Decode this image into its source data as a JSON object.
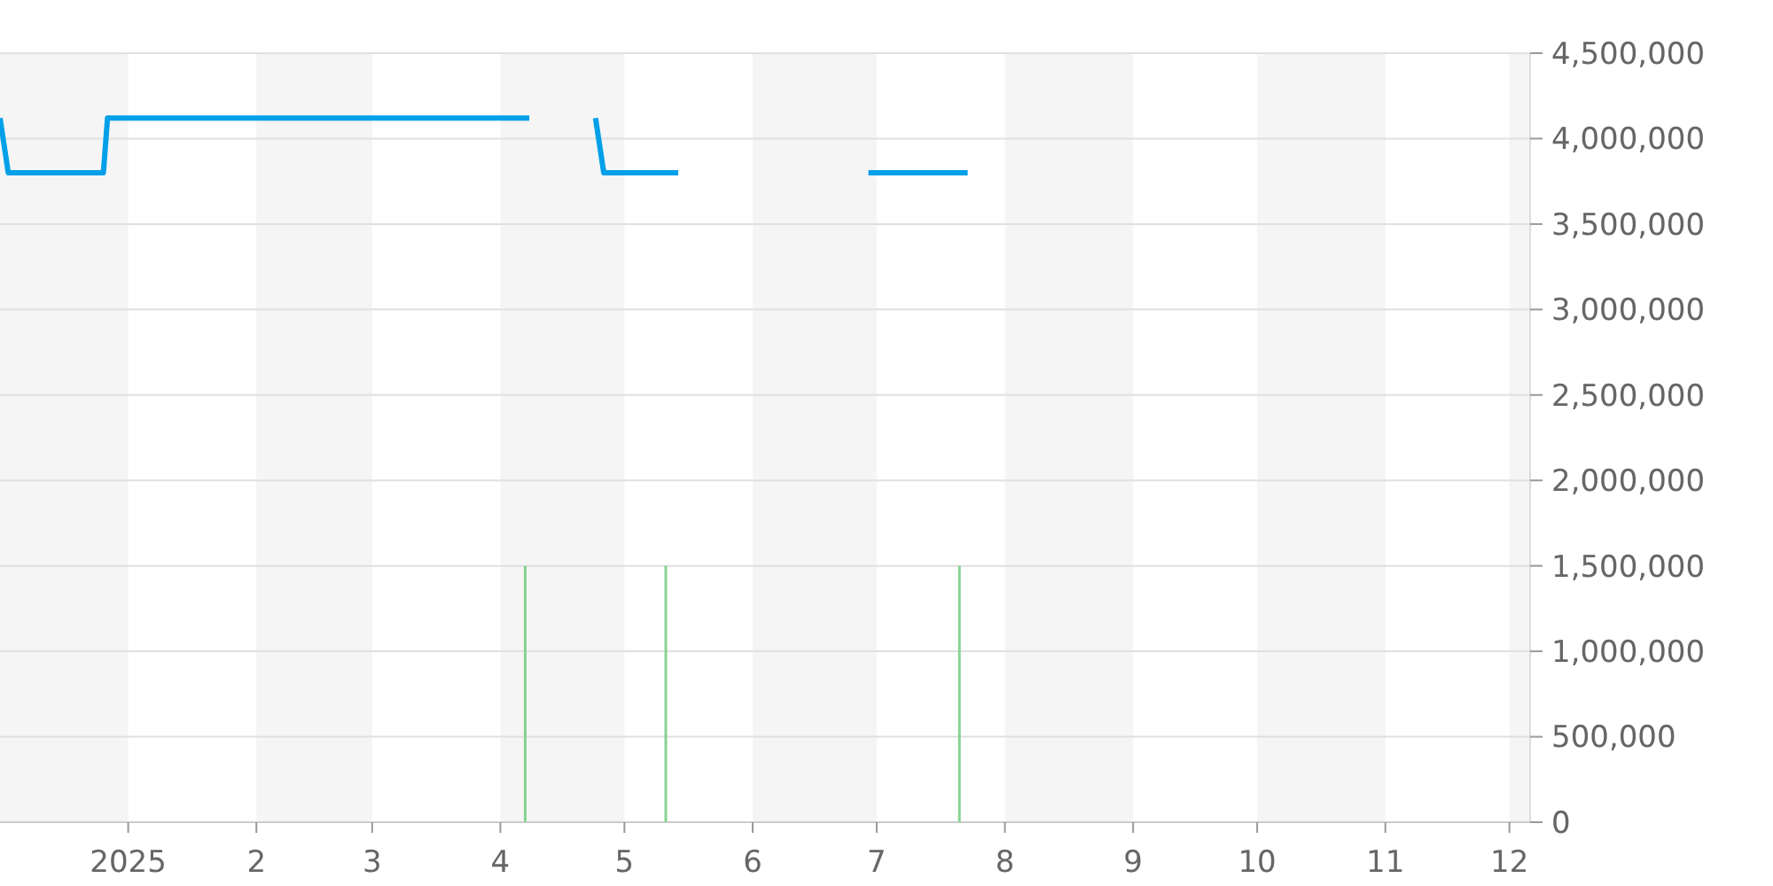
{
  "chart_data": {
    "type": "line",
    "xlim": [
      "2024-12-01",
      "2025-12-06"
    ],
    "xticks": [
      {
        "value": "2025-01-01",
        "label": "2025"
      },
      {
        "value": "2025-02-01",
        "label": "2"
      },
      {
        "value": "2025-03-01",
        "label": "3"
      },
      {
        "value": "2025-04-01",
        "label": "4"
      },
      {
        "value": "2025-05-01",
        "label": "5"
      },
      {
        "value": "2025-06-01",
        "label": "6"
      },
      {
        "value": "2025-07-01",
        "label": "7"
      },
      {
        "value": "2025-08-01",
        "label": "8"
      },
      {
        "value": "2025-09-01",
        "label": "9"
      },
      {
        "value": "2025-10-01",
        "label": "10"
      },
      {
        "value": "2025-11-01",
        "label": "11"
      },
      {
        "value": "2025-12-01",
        "label": "12"
      }
    ],
    "ylim": [
      0,
      4500000
    ],
    "yticks": [
      {
        "value": 0,
        "label": "0"
      },
      {
        "value": 500000,
        "label": "500,000"
      },
      {
        "value": 1000000,
        "label": "1,000,000"
      },
      {
        "value": 1500000,
        "label": "1,500,000"
      },
      {
        "value": 2000000,
        "label": "2,000,000"
      },
      {
        "value": 2500000,
        "label": "2,500,000"
      },
      {
        "value": 3000000,
        "label": "3,000,000"
      },
      {
        "value": 3500000,
        "label": "3,500,000"
      },
      {
        "value": 4000000,
        "label": "4,000,000"
      },
      {
        "value": 4500000,
        "label": "4,500,000"
      }
    ],
    "grid": "y",
    "marker": "none",
    "line_style": "solid",
    "bands": [
      {
        "axis": "x",
        "from": "2024-12-01",
        "to": "2025-01-01",
        "color": "#f5f5f5"
      },
      {
        "axis": "x",
        "from": "2025-02-01",
        "to": "2025-03-01",
        "color": "#f5f5f5"
      },
      {
        "axis": "x",
        "from": "2025-04-01",
        "to": "2025-05-01",
        "color": "#f5f5f5"
      },
      {
        "axis": "x",
        "from": "2025-06-01",
        "to": "2025-07-01",
        "color": "#f5f5f5"
      },
      {
        "axis": "x",
        "from": "2025-08-01",
        "to": "2025-09-01",
        "color": "#f5f5f5"
      },
      {
        "axis": "x",
        "from": "2025-10-01",
        "to": "2025-11-01",
        "color": "#f5f5f5"
      },
      {
        "axis": "x",
        "from": "2025-12-01",
        "to": "2025-12-06",
        "color": "#f5f5f5"
      }
    ],
    "series": [
      {
        "color": "#00a0e9",
        "x": [
          "2024-12-01",
          "2024-12-03",
          "2024-12-26",
          "2024-12-27",
          "2025-04-08",
          "2025-04-16",
          "2025-04-24",
          "2025-04-26",
          "2025-05-14",
          "2025-06-05",
          "2025-06-29",
          "2025-07-23"
        ],
        "values": [
          4120000,
          3800000,
          3800000,
          4120000,
          4120000,
          null,
          4120000,
          3800000,
          3800000,
          null,
          3800000,
          3800000
        ]
      },
      {
        "type": "bar",
        "color": "#86d392",
        "x": [
          "2025-04-07",
          "2025-05-11",
          "2025-07-21"
        ],
        "values": [
          1500000,
          1500000,
          1500000
        ]
      }
    ]
  }
}
